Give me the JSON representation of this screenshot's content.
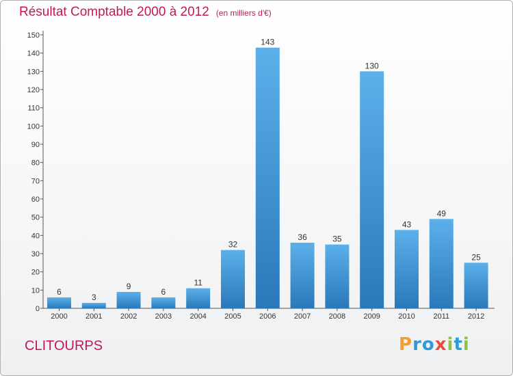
{
  "chart_data": {
    "type": "bar",
    "title": "Résultat Comptable 2000 à 2012",
    "subtitle": "(en milliers d'€)",
    "categories": [
      "2000",
      "2001",
      "2002",
      "2003",
      "2004",
      "2005",
      "2006",
      "2007",
      "2008",
      "2009",
      "2010",
      "2011",
      "2012"
    ],
    "values": [
      6,
      3,
      9,
      6,
      11,
      32,
      143,
      36,
      35,
      130,
      43,
      49,
      25
    ],
    "xlabel": "",
    "ylabel": "",
    "ylim": [
      0,
      150
    ],
    "yticks": [
      0,
      10,
      20,
      30,
      40,
      50,
      60,
      70,
      80,
      90,
      100,
      110,
      120,
      130,
      140,
      150
    ],
    "grid": false,
    "bar_color": "#3a8fd4"
  },
  "commune": "CLITOURPS",
  "logo": {
    "letters": [
      "P",
      "r",
      "o",
      "x",
      "i",
      "t",
      "i"
    ],
    "colors": [
      "#f0a030",
      "#2e9ad8",
      "#2e9ad8",
      "#e84c3d",
      "#8bc34a",
      "#2e9ad8",
      "#8bc34a"
    ]
  }
}
